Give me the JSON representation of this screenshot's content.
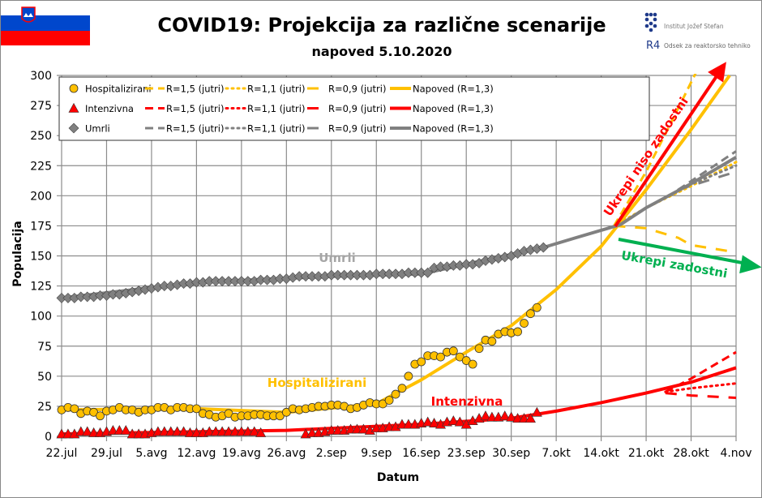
{
  "title": "COVID19: Projekcija za različne scenarije",
  "subtitle": "napoved 5.10.2020",
  "logos": {
    "ijs": "Institut Jožef Stefan",
    "r4": "Odsek za reaktorsko tehniko",
    "r4_mark": "R4"
  },
  "colors": {
    "hosp": "#FFC000",
    "icu": "#FF0000",
    "deaths": "#808080",
    "green": "#00B050",
    "flag_white": "#FFFFFF",
    "flag_blue": "#0047CC",
    "flag_red": "#FF0000"
  },
  "chart_data": {
    "type": "line",
    "xlabel": "Datum",
    "ylabel": "Populacija",
    "ylim": [
      0,
      300
    ],
    "yticks": [
      0,
      25,
      50,
      75,
      100,
      125,
      150,
      175,
      200,
      225,
      250,
      275,
      300
    ],
    "xlim": [
      "2020-07-22",
      "2020-11-04"
    ],
    "xticks": [
      "22.jul",
      "29.jul",
      "5.avg",
      "12.avg",
      "19.avg",
      "26.avg",
      "2.sep",
      "9.sep",
      "16.sep",
      "23.sep",
      "30.sep",
      "7.okt",
      "14.okt",
      "21.okt",
      "28.okt",
      "4.nov"
    ],
    "grid": true,
    "legend_position": "top-left",
    "observed": [
      {
        "name": "Hospitalizirani",
        "marker": "circle",
        "color": "#FFC000",
        "first_date": "2020-07-22",
        "values": [
          22,
          24,
          23,
          19,
          21,
          20,
          17,
          21,
          22,
          24,
          22,
          22,
          20,
          22,
          22,
          24,
          24,
          22,
          24,
          24,
          23,
          23,
          19,
          18,
          16,
          17,
          19,
          16,
          17,
          17,
          18,
          18,
          17,
          17,
          17,
          20,
          23,
          22,
          23,
          24,
          25,
          25,
          26,
          26,
          25,
          23,
          24,
          26,
          28,
          27,
          27,
          30,
          35,
          40,
          50,
          60,
          62,
          67,
          67,
          66,
          70,
          71,
          66,
          63,
          60,
          73,
          80,
          79,
          85,
          87,
          86,
          87,
          94,
          102,
          107
        ]
      },
      {
        "name": "Intenzivna",
        "marker": "triangle",
        "color": "#FF0000",
        "first_date": "2020-07-22",
        "values": [
          2,
          2,
          2,
          4,
          4,
          3,
          3,
          4,
          5,
          5,
          5,
          2,
          2,
          2,
          3,
          4,
          4,
          4,
          4,
          4,
          3,
          3,
          3,
          4,
          4,
          4,
          4,
          4,
          4,
          4,
          4,
          3,
          null,
          null,
          null,
          null,
          null,
          null,
          2,
          3,
          3,
          4,
          5,
          5,
          5,
          6,
          6,
          6,
          5,
          7,
          7,
          8,
          8,
          10,
          10,
          10,
          11,
          12,
          11,
          10,
          12,
          13,
          12,
          10,
          13,
          15,
          17,
          16,
          16,
          17,
          16,
          15,
          15,
          15,
          20
        ]
      },
      {
        "name": "Umrli",
        "marker": "diamond",
        "color": "#808080",
        "first_date": "2020-07-22",
        "values": [
          115,
          115,
          115,
          116,
          116,
          116,
          117,
          117,
          118,
          118,
          119,
          120,
          121,
          122,
          123,
          124,
          125,
          125,
          126,
          127,
          127,
          128,
          128,
          129,
          129,
          129,
          129,
          129,
          129,
          129,
          129,
          130,
          130,
          130,
          131,
          131,
          132,
          133,
          133,
          133,
          133,
          133,
          134,
          134,
          134,
          134,
          134,
          134,
          134,
          135,
          135,
          135,
          135,
          135,
          136,
          136,
          136,
          136,
          140,
          141,
          141,
          142,
          142,
          143,
          143,
          144,
          146,
          147,
          148,
          149,
          150,
          152,
          154,
          155,
          156,
          157
        ]
      }
    ],
    "projections": [
      {
        "name": "Napoved (R=1,3)",
        "group": "Hospitalizirani",
        "style": "solid",
        "color": "#FFC000",
        "points": [
          [
            "2020-07-22",
            22
          ],
          [
            "2020-08-12",
            23
          ],
          [
            "2020-08-26",
            20
          ],
          [
            "2020-09-09",
            27
          ],
          [
            "2020-09-16",
            47
          ],
          [
            "2020-09-23",
            70
          ],
          [
            "2020-09-30",
            92
          ],
          [
            "2020-10-07",
            122
          ],
          [
            "2020-10-14",
            158
          ],
          [
            "2020-10-21",
            205
          ],
          [
            "2020-10-28",
            255
          ],
          [
            "2020-11-03",
            300
          ]
        ]
      },
      {
        "name": "R=1,5 (jutri)",
        "group": "Hospitalizirani",
        "style": "dash",
        "color": "#FFC000",
        "points": [
          [
            "2020-10-16",
            175
          ],
          [
            "2020-10-21",
            220
          ],
          [
            "2020-10-25",
            262
          ],
          [
            "2020-10-29",
            305
          ]
        ]
      },
      {
        "name": "R=1,1 (jutri)",
        "group": "Hospitalizirani",
        "style": "dot",
        "color": "#FFC000",
        "points": [
          [
            "2020-10-16",
            175
          ],
          [
            "2020-10-21",
            190
          ],
          [
            "2020-10-28",
            208
          ],
          [
            "2020-11-04",
            228
          ]
        ]
      },
      {
        "name": "R=0,9 (jutri)",
        "group": "Hospitalizirani",
        "style": "dash2",
        "color": "#FFC000",
        "points": [
          [
            "2020-10-16",
            175
          ],
          [
            "2020-10-21",
            173
          ],
          [
            "2020-10-26",
            165
          ],
          [
            "2020-10-28",
            159
          ],
          [
            "2020-11-04",
            153
          ]
        ]
      },
      {
        "name": "Napoved (R=1,3)",
        "group": "Intenzivna",
        "style": "solid",
        "color": "#FF0000",
        "points": [
          [
            "2020-07-22",
            2
          ],
          [
            "2020-08-26",
            5
          ],
          [
            "2020-09-16",
            10
          ],
          [
            "2020-09-30",
            15
          ],
          [
            "2020-10-07",
            21
          ],
          [
            "2020-10-14",
            28
          ],
          [
            "2020-10-21",
            36
          ],
          [
            "2020-10-28",
            45
          ],
          [
            "2020-11-04",
            57
          ]
        ]
      },
      {
        "name": "R=1,5 (jutri)",
        "group": "Intenzivna",
        "style": "dash",
        "color": "#FF0000",
        "points": [
          [
            "2020-10-24",
            37
          ],
          [
            "2020-10-28",
            48
          ],
          [
            "2020-11-04",
            70
          ]
        ]
      },
      {
        "name": "R=1,1 (jutri)",
        "group": "Intenzivna",
        "style": "dot",
        "color": "#FF0000",
        "points": [
          [
            "2020-10-24",
            37
          ],
          [
            "2020-10-28",
            40
          ],
          [
            "2020-11-04",
            44
          ]
        ]
      },
      {
        "name": "R=0,9 (jutri)",
        "group": "Intenzivna",
        "style": "dash2",
        "color": "#FF0000",
        "points": [
          [
            "2020-10-24",
            36
          ],
          [
            "2020-10-28",
            34
          ],
          [
            "2020-11-04",
            32
          ]
        ]
      },
      {
        "name": "Napoved (R=1,3)",
        "group": "Umrli",
        "style": "solid",
        "color": "#808080",
        "points": [
          [
            "2020-07-22",
            115
          ],
          [
            "2020-08-12",
            128
          ],
          [
            "2020-09-02",
            133
          ],
          [
            "2020-09-16",
            135
          ],
          [
            "2020-10-05",
            157
          ],
          [
            "2020-10-10",
            165
          ],
          [
            "2020-10-17",
            176
          ],
          [
            "2020-10-21",
            190
          ],
          [
            "2020-10-28",
            210
          ],
          [
            "2020-11-04",
            232
          ]
        ]
      },
      {
        "name": "R=1,5 (jutri)",
        "group": "Umrli",
        "style": "dash",
        "color": "#808080",
        "points": [
          [
            "2020-10-26",
            205
          ],
          [
            "2020-11-04",
            237
          ]
        ]
      },
      {
        "name": "R=1,1 (jutri)",
        "group": "Umrli",
        "style": "dot",
        "color": "#808080",
        "points": [
          [
            "2020-10-26",
            205
          ],
          [
            "2020-11-04",
            225
          ]
        ]
      },
      {
        "name": "R=0,9 (jutri)",
        "group": "Umrli",
        "style": "dash2",
        "color": "#808080",
        "points": [
          [
            "2020-10-26",
            205
          ],
          [
            "2020-11-04",
            220
          ]
        ]
      }
    ],
    "legend": {
      "rows": [
        {
          "marker": "circle",
          "label": "Hospitalizirani",
          "color": "#FFC000"
        },
        {
          "marker": "triangle",
          "label": "Intenzivna",
          "color": "#FF0000"
        },
        {
          "marker": "diamond",
          "label": "Umrli",
          "color": "#808080"
        }
      ],
      "columns": [
        {
          "style": "dash",
          "label": "R=1,5 (jutri)"
        },
        {
          "style": "dot",
          "label": "R=1,1 (jutri)"
        },
        {
          "style": "dash2",
          "label": "R=0,9 (jutri)"
        },
        {
          "style": "solid",
          "label": "Napoved (R=1,3)"
        }
      ]
    },
    "annotations": {
      "umrli": "Umrli",
      "hosp": "Hospitalizirani",
      "icu": "Intenzivna",
      "bad": "Ukrepi niso zadostni",
      "good": "Ukrepi zadostni"
    }
  }
}
